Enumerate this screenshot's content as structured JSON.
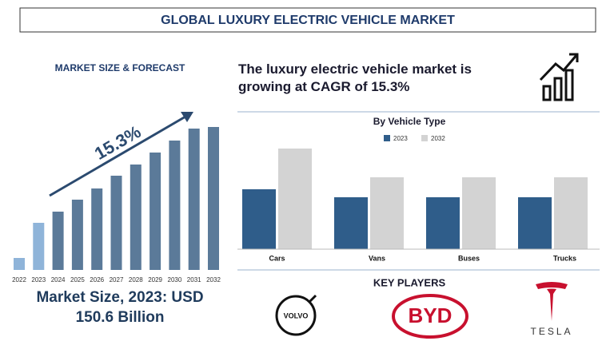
{
  "title": "GLOBAL LUXURY ELECTRIC VEHICLE MARKET",
  "headline": "The luxury electric vehicle market is growing at CAGR of 15.3%",
  "market_size": [
    "Market Size, 2023: USD",
    "150.6 Billion"
  ],
  "key_players": {
    "title": "KEY PLAYERS",
    "logos": [
      "VOLVO",
      "BYD",
      "TESLA"
    ]
  },
  "chart_data": [
    {
      "type": "bar",
      "title": "MARKET SIZE & FORECAST",
      "annotation": "15.3%",
      "categories": [
        "2022",
        "2023",
        "2024",
        "2025",
        "2026",
        "2027",
        "2028",
        "2029",
        "2030",
        "2031",
        "2032"
      ],
      "values": [
        15,
        59,
        73,
        88,
        102,
        118,
        132,
        147,
        162,
        177,
        179
      ],
      "colors": [
        "#8fb4d9",
        "#8fb4d9",
        "#5b7a99",
        "#5b7a99",
        "#5b7a99",
        "#5b7a99",
        "#5b7a99",
        "#5b7a99",
        "#5b7a99",
        "#5b7a99",
        "#5b7a99"
      ]
    },
    {
      "type": "grouped_bar",
      "title": "By Vehicle Type",
      "categories": [
        "Cars",
        "Vans",
        "Buses",
        "Trucks"
      ],
      "series": [
        {
          "name": "2023",
          "color": "#2f5d8a",
          "values": [
            75,
            65,
            65,
            65
          ]
        },
        {
          "name": "2032",
          "color": "#d3d3d3",
          "values": [
            126,
            90,
            90,
            90
          ]
        }
      ]
    }
  ]
}
